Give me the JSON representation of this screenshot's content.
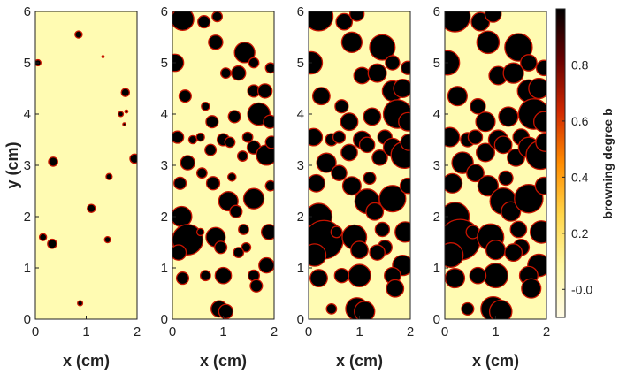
{
  "chart_data": {
    "type": "heatmap",
    "panels": [
      {
        "xlabel": "x (cm)",
        "ylabel": "y (cm)",
        "xlim": [
          0,
          2
        ],
        "ylim": [
          0,
          6
        ],
        "spots": [
          [
            0.05,
            5.0,
            0.06
          ],
          [
            0.85,
            5.55,
            0.07
          ],
          [
            1.33,
            5.12,
            0.02
          ],
          [
            1.77,
            4.42,
            0.08
          ],
          [
            1.68,
            4.0,
            0.05
          ],
          [
            1.79,
            4.05,
            0.03
          ],
          [
            1.75,
            3.8,
            0.03
          ],
          [
            0.35,
            3.07,
            0.09
          ],
          [
            1.95,
            3.13,
            0.09
          ],
          [
            1.45,
            2.78,
            0.06
          ],
          [
            1.1,
            2.16,
            0.08
          ],
          [
            0.15,
            1.6,
            0.07
          ],
          [
            0.33,
            1.47,
            0.09
          ],
          [
            1.42,
            1.55,
            0.06
          ],
          [
            0.88,
            0.31,
            0.05
          ]
        ]
      },
      {
        "xlabel": "x (cm)",
        "ylabel": "",
        "xlim": [
          0,
          2
        ],
        "ylim": [
          0,
          6
        ],
        "spots": [
          [
            0.2,
            5.85,
            0.22
          ],
          [
            0.62,
            5.8,
            0.12
          ],
          [
            0.88,
            5.9,
            0.1
          ],
          [
            0.05,
            5.0,
            0.17
          ],
          [
            0.85,
            5.4,
            0.14
          ],
          [
            1.42,
            5.2,
            0.2
          ],
          [
            1.6,
            5.0,
            0.1
          ],
          [
            1.93,
            4.9,
            0.1
          ],
          [
            1.05,
            4.8,
            0.1
          ],
          [
            1.3,
            4.8,
            0.14
          ],
          [
            1.6,
            4.45,
            0.12
          ],
          [
            1.82,
            4.45,
            0.14
          ],
          [
            0.25,
            4.35,
            0.12
          ],
          [
            1.7,
            4.0,
            0.22
          ],
          [
            1.92,
            3.85,
            0.13
          ],
          [
            0.65,
            4.15,
            0.08
          ],
          [
            1.48,
            3.55,
            0.1
          ],
          [
            0.78,
            3.85,
            0.12
          ],
          [
            1.22,
            3.95,
            0.12
          ],
          [
            0.1,
            3.55,
            0.12
          ],
          [
            0.4,
            3.5,
            0.08
          ],
          [
            0.55,
            3.55,
            0.08
          ],
          [
            0.75,
            3.3,
            0.11
          ],
          [
            1.0,
            3.5,
            0.12
          ],
          [
            1.13,
            3.45,
            0.1
          ],
          [
            1.38,
            3.18,
            0.1
          ],
          [
            1.6,
            3.35,
            0.13
          ],
          [
            1.85,
            3.2,
            0.2
          ],
          [
            1.95,
            3.45,
            0.12
          ],
          [
            0.3,
            3.05,
            0.14
          ],
          [
            1.17,
            2.77,
            0.08
          ],
          [
            0.58,
            2.85,
            0.1
          ],
          [
            0.8,
            2.65,
            0.13
          ],
          [
            0.15,
            2.65,
            0.12
          ],
          [
            1.1,
            2.3,
            0.19
          ],
          [
            1.25,
            2.1,
            0.12
          ],
          [
            1.6,
            2.35,
            0.2
          ],
          [
            1.93,
            2.6,
            0.1
          ],
          [
            0.18,
            2.0,
            0.2
          ],
          [
            0.3,
            1.55,
            0.3
          ],
          [
            0.12,
            1.3,
            0.15
          ],
          [
            0.55,
            1.7,
            0.07
          ],
          [
            1.4,
            1.75,
            0.1
          ],
          [
            1.45,
            1.4,
            0.09
          ],
          [
            1.9,
            1.7,
            0.15
          ],
          [
            0.85,
            1.6,
            0.19
          ],
          [
            0.95,
            1.4,
            0.12
          ],
          [
            1.3,
            1.3,
            0.1
          ],
          [
            1.0,
            0.85,
            0.16
          ],
          [
            1.85,
            1.05,
            0.15
          ],
          [
            1.6,
            0.85,
            0.11
          ],
          [
            1.65,
            0.65,
            0.12
          ],
          [
            0.2,
            0.8,
            0.12
          ],
          [
            0.65,
            0.85,
            0.1
          ],
          [
            0.92,
            0.2,
            0.16
          ],
          [
            1.05,
            0.15,
            0.14
          ]
        ]
      },
      {
        "xlabel": "x (cm)",
        "ylabel": "",
        "xlim": [
          0,
          2
        ],
        "ylim": [
          0,
          6
        ],
        "spots": [
          [
            0.2,
            5.9,
            0.28
          ],
          [
            0.7,
            5.8,
            0.16
          ],
          [
            0.95,
            5.95,
            0.14
          ],
          [
            0.05,
            5.0,
            0.22
          ],
          [
            0.85,
            5.4,
            0.2
          ],
          [
            1.45,
            5.3,
            0.25
          ],
          [
            1.65,
            5.0,
            0.14
          ],
          [
            1.95,
            4.9,
            0.13
          ],
          [
            1.05,
            4.75,
            0.16
          ],
          [
            1.35,
            4.8,
            0.18
          ],
          [
            1.65,
            4.45,
            0.2
          ],
          [
            1.85,
            4.5,
            0.18
          ],
          [
            0.25,
            4.35,
            0.17
          ],
          [
            1.75,
            4.0,
            0.28
          ],
          [
            1.95,
            3.85,
            0.18
          ],
          [
            0.65,
            4.15,
            0.13
          ],
          [
            1.5,
            3.55,
            0.14
          ],
          [
            0.8,
            3.85,
            0.17
          ],
          [
            1.25,
            3.95,
            0.17
          ],
          [
            0.1,
            3.55,
            0.17
          ],
          [
            0.45,
            3.5,
            0.12
          ],
          [
            0.6,
            3.55,
            0.12
          ],
          [
            0.8,
            3.25,
            0.16
          ],
          [
            1.05,
            3.5,
            0.17
          ],
          [
            1.15,
            3.4,
            0.15
          ],
          [
            1.4,
            3.15,
            0.15
          ],
          [
            1.65,
            3.35,
            0.18
          ],
          [
            1.88,
            3.2,
            0.26
          ],
          [
            1.97,
            3.45,
            0.16
          ],
          [
            0.35,
            3.05,
            0.19
          ],
          [
            1.2,
            2.75,
            0.12
          ],
          [
            0.6,
            2.85,
            0.15
          ],
          [
            0.85,
            2.6,
            0.18
          ],
          [
            0.15,
            2.65,
            0.17
          ],
          [
            1.15,
            2.3,
            0.24
          ],
          [
            1.3,
            2.1,
            0.17
          ],
          [
            1.65,
            2.35,
            0.26
          ],
          [
            1.95,
            2.6,
            0.15
          ],
          [
            0.2,
            2.0,
            0.26
          ],
          [
            0.3,
            1.55,
            0.38
          ],
          [
            0.12,
            1.25,
            0.22
          ],
          [
            0.55,
            1.7,
            0.11
          ],
          [
            1.45,
            1.75,
            0.14
          ],
          [
            1.5,
            1.4,
            0.14
          ],
          [
            1.9,
            1.7,
            0.2
          ],
          [
            0.9,
            1.6,
            0.24
          ],
          [
            1.0,
            1.35,
            0.17
          ],
          [
            1.35,
            1.3,
            0.15
          ],
          [
            1.0,
            0.85,
            0.22
          ],
          [
            1.85,
            1.05,
            0.2
          ],
          [
            1.65,
            0.85,
            0.16
          ],
          [
            1.7,
            0.6,
            0.17
          ],
          [
            0.2,
            0.8,
            0.17
          ],
          [
            0.65,
            0.85,
            0.14
          ],
          [
            0.95,
            0.2,
            0.22
          ],
          [
            1.1,
            0.15,
            0.2
          ],
          [
            0.45,
            0.2,
            0.1
          ]
        ]
      },
      {
        "xlabel": "x (cm)",
        "ylabel": "",
        "xlim": [
          0,
          2
        ],
        "ylim": [
          0,
          6
        ],
        "spots": [
          [
            0.2,
            5.9,
            0.3
          ],
          [
            0.7,
            5.8,
            0.18
          ],
          [
            0.95,
            5.95,
            0.16
          ],
          [
            0.05,
            5.0,
            0.24
          ],
          [
            0.85,
            5.4,
            0.22
          ],
          [
            1.45,
            5.3,
            0.27
          ],
          [
            1.65,
            5.0,
            0.16
          ],
          [
            1.95,
            4.9,
            0.15
          ],
          [
            1.05,
            4.75,
            0.18
          ],
          [
            1.35,
            4.8,
            0.2
          ],
          [
            1.65,
            4.45,
            0.22
          ],
          [
            1.85,
            4.5,
            0.2
          ],
          [
            0.25,
            4.35,
            0.19
          ],
          [
            1.75,
            4.0,
            0.3
          ],
          [
            1.95,
            3.85,
            0.2
          ],
          [
            0.65,
            4.15,
            0.15
          ],
          [
            1.5,
            3.55,
            0.16
          ],
          [
            0.8,
            3.85,
            0.19
          ],
          [
            1.25,
            3.95,
            0.19
          ],
          [
            0.1,
            3.55,
            0.19
          ],
          [
            0.45,
            3.5,
            0.14
          ],
          [
            0.6,
            3.55,
            0.14
          ],
          [
            0.8,
            3.25,
            0.18
          ],
          [
            1.05,
            3.5,
            0.19
          ],
          [
            1.15,
            3.4,
            0.17
          ],
          [
            1.4,
            3.15,
            0.17
          ],
          [
            1.65,
            3.35,
            0.2
          ],
          [
            1.88,
            3.2,
            0.28
          ],
          [
            1.97,
            3.45,
            0.18
          ],
          [
            0.35,
            3.05,
            0.21
          ],
          [
            1.2,
            2.75,
            0.14
          ],
          [
            0.6,
            2.85,
            0.17
          ],
          [
            0.85,
            2.6,
            0.2
          ],
          [
            0.15,
            2.65,
            0.19
          ],
          [
            1.15,
            2.3,
            0.26
          ],
          [
            1.3,
            2.1,
            0.19
          ],
          [
            1.65,
            2.35,
            0.28
          ],
          [
            1.95,
            2.6,
            0.17
          ],
          [
            0.2,
            2.0,
            0.28
          ],
          [
            0.3,
            1.55,
            0.4
          ],
          [
            0.12,
            1.25,
            0.24
          ],
          [
            0.55,
            1.7,
            0.13
          ],
          [
            1.45,
            1.75,
            0.16
          ],
          [
            1.5,
            1.4,
            0.16
          ],
          [
            1.9,
            1.7,
            0.22
          ],
          [
            0.9,
            1.6,
            0.26
          ],
          [
            1.0,
            1.35,
            0.19
          ],
          [
            1.35,
            1.3,
            0.17
          ],
          [
            1.0,
            0.85,
            0.24
          ],
          [
            1.85,
            1.05,
            0.22
          ],
          [
            1.65,
            0.85,
            0.18
          ],
          [
            1.7,
            0.6,
            0.19
          ],
          [
            0.2,
            0.8,
            0.19
          ],
          [
            0.65,
            0.85,
            0.16
          ],
          [
            0.95,
            0.2,
            0.24
          ],
          [
            1.1,
            0.15,
            0.22
          ],
          [
            0.45,
            0.2,
            0.12
          ]
        ]
      }
    ],
    "x_ticks": [
      "0",
      "1",
      "2"
    ],
    "y_ticks": [
      "0",
      "1",
      "2",
      "3",
      "4",
      "5",
      "6"
    ],
    "colorbar": {
      "label": "browning degree b",
      "range": [
        -0.1,
        1.0
      ],
      "ticks": [
        {
          "value": 0.8,
          "label": "0.8"
        },
        {
          "value": 0.6,
          "label": "0.6"
        },
        {
          "value": 0.4,
          "label": "0.4"
        },
        {
          "value": 0.2,
          "label": "0.2"
        },
        {
          "value": 0.0,
          "label": "-0.0"
        }
      ],
      "colormap": [
        "#fffbe6",
        "#fff7a3",
        "#ffd54a",
        "#ff8c00",
        "#d12800",
        "#6a0000",
        "#000000"
      ]
    },
    "background_color": "#fffbb2",
    "spot_color": "#000000",
    "spot_rim_color": "#c81400",
    "grid": false
  }
}
